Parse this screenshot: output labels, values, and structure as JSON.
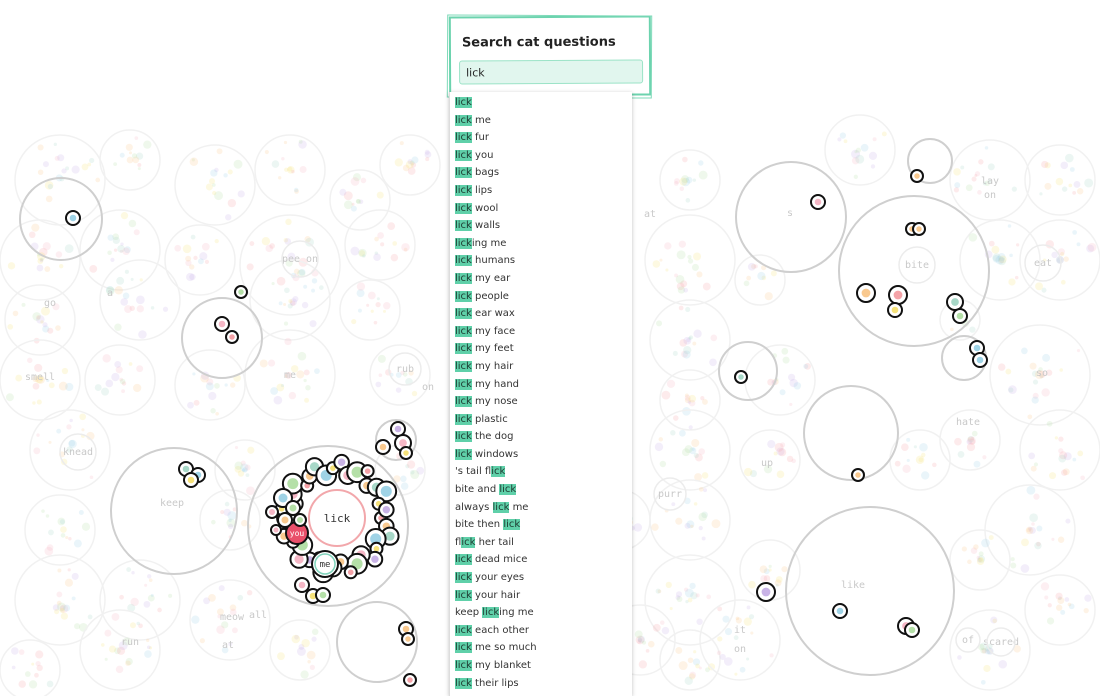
{
  "search": {
    "title": "Search cat questions",
    "query": "lick",
    "highlight_color": "#5fd0a9",
    "results": [
      {
        "pre": "",
        "match": "lick",
        "post": ""
      },
      {
        "pre": "",
        "match": "lick",
        "post": " me"
      },
      {
        "pre": "",
        "match": "lick",
        "post": " fur"
      },
      {
        "pre": "",
        "match": "lick",
        "post": " you"
      },
      {
        "pre": "",
        "match": "lick",
        "post": " bags"
      },
      {
        "pre": "",
        "match": "lick",
        "post": " lips"
      },
      {
        "pre": "",
        "match": "lick",
        "post": " wool"
      },
      {
        "pre": "",
        "match": "lick",
        "post": " walls"
      },
      {
        "pre": "",
        "match": "lick",
        "post": "ing me"
      },
      {
        "pre": "",
        "match": "lick",
        "post": " humans"
      },
      {
        "pre": "",
        "match": "lick",
        "post": " my ear"
      },
      {
        "pre": "",
        "match": "lick",
        "post": " people"
      },
      {
        "pre": "",
        "match": "lick",
        "post": " ear wax"
      },
      {
        "pre": "",
        "match": "lick",
        "post": " my face"
      },
      {
        "pre": "",
        "match": "lick",
        "post": " my feet"
      },
      {
        "pre": "",
        "match": "lick",
        "post": " my hair"
      },
      {
        "pre": "",
        "match": "lick",
        "post": " my hand"
      },
      {
        "pre": "",
        "match": "lick",
        "post": " my nose"
      },
      {
        "pre": "",
        "match": "lick",
        "post": " plastic"
      },
      {
        "pre": "",
        "match": "lick",
        "post": " the dog"
      },
      {
        "pre": "",
        "match": "lick",
        "post": " windows"
      },
      {
        "pre": "'s tail f",
        "match": "lick",
        "post": ""
      },
      {
        "pre": "bite and ",
        "match": "lick",
        "post": ""
      },
      {
        "pre": "always ",
        "match": "lick",
        "post": " me"
      },
      {
        "pre": "bite then ",
        "match": "lick",
        "post": ""
      },
      {
        "pre": "f",
        "match": "lick",
        "post": " her tail"
      },
      {
        "pre": "",
        "match": "lick",
        "post": " dead mice"
      },
      {
        "pre": "",
        "match": "lick",
        "post": " your eyes"
      },
      {
        "pre": "",
        "match": "lick",
        "post": " your hair"
      },
      {
        "pre": "keep ",
        "match": "lick",
        "post": "ing me"
      },
      {
        "pre": "",
        "match": "lick",
        "post": " each other"
      },
      {
        "pre": "",
        "match": "lick",
        "post": " me so much"
      },
      {
        "pre": "",
        "match": "lick",
        "post": " my blanket"
      },
      {
        "pre": "",
        "match": "lick",
        "post": " their lips"
      }
    ]
  },
  "bubbles": {
    "faint_labels": [
      "pee on",
      "go",
      "a",
      "smell",
      "me",
      "rub",
      "on",
      "knead",
      "keep",
      "meow",
      "all",
      "at",
      "run",
      "s",
      "bite",
      "eat",
      "lay",
      "on",
      "so",
      "hate",
      "up",
      "purr",
      "like",
      "it",
      "on",
      "of",
      "scared",
      "at"
    ],
    "focus_labels": {
      "lick": "lick",
      "you": "you",
      "me": "me"
    },
    "palette": [
      "#f4a3a8",
      "#f9c98f",
      "#a8d8c8",
      "#9fd3e6",
      "#f6e27a",
      "#c9b3e6",
      "#f5b7c6",
      "#b5e0a8"
    ]
  }
}
